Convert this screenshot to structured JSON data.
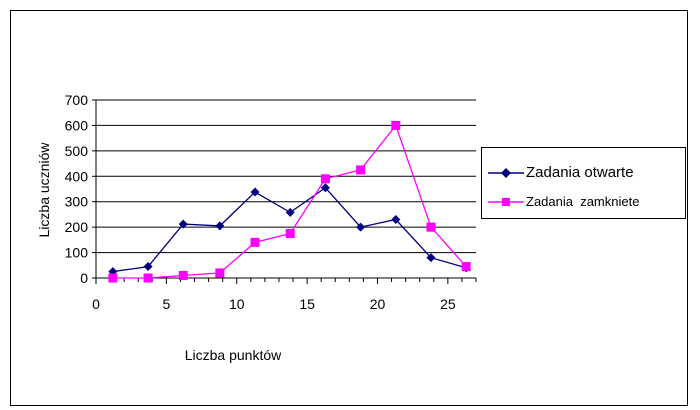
{
  "chart_data": {
    "type": "line",
    "xlabel": "Liczba punktów",
    "ylabel": "Liczba uczniów",
    "xlim": [
      0,
      27
    ],
    "ylim": [
      0,
      700
    ],
    "xticks": [
      0,
      5,
      10,
      15,
      20,
      25
    ],
    "yticks": [
      0,
      100,
      200,
      300,
      400,
      500,
      600,
      700
    ],
    "grid": "horizontal",
    "legend_position": "right",
    "series": [
      {
        "name": "Zadania otwarte",
        "color": "#000080",
        "marker": "diamond",
        "x": [
          1.2,
          3.7,
          6.2,
          8.8,
          11.3,
          13.8,
          16.3,
          18.8,
          21.3,
          23.8,
          26.3
        ],
        "y": [
          25,
          45,
          212,
          205,
          338,
          258,
          355,
          200,
          230,
          80,
          40
        ]
      },
      {
        "name": "Zadania  zamkniete",
        "color": "#ff00ff",
        "marker": "square",
        "x": [
          1.2,
          3.7,
          6.2,
          8.8,
          11.3,
          13.8,
          16.3,
          18.8,
          21.3,
          23.8,
          26.3
        ],
        "y": [
          0,
          0,
          10,
          20,
          140,
          175,
          390,
          425,
          600,
          200,
          45
        ]
      }
    ]
  }
}
